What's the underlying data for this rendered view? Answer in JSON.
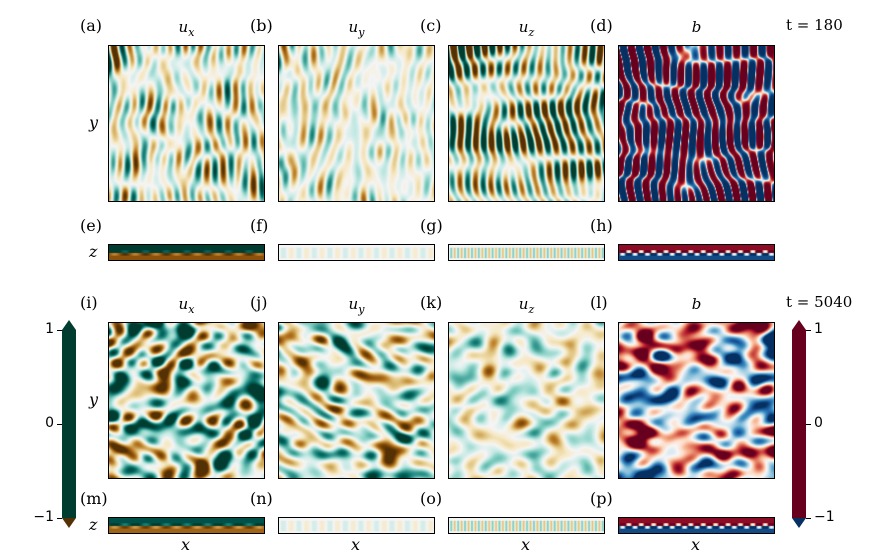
{
  "top": {
    "time_label": "t = 180",
    "panels": [
      {
        "tag": "(a)",
        "title": "u",
        "sub": "x",
        "field": "ux"
      },
      {
        "tag": "(b)",
        "title": "u",
        "sub": "y",
        "field": "uy"
      },
      {
        "tag": "(c)",
        "title": "u",
        "sub": "z",
        "field": "uz"
      },
      {
        "tag": "(d)",
        "title": "b",
        "sub": "",
        "field": "b"
      }
    ],
    "strips": [
      "(e)",
      "(f)",
      "(g)",
      "(h)"
    ],
    "ylabel": "y",
    "zlabel": "z"
  },
  "bottom": {
    "time_label": "t = 5040",
    "panels": [
      {
        "tag": "(i)",
        "title": "u",
        "sub": "x",
        "field": "ux"
      },
      {
        "tag": "(j)",
        "title": "u",
        "sub": "y",
        "field": "uy"
      },
      {
        "tag": "(k)",
        "title": "u",
        "sub": "z",
        "field": "uz"
      },
      {
        "tag": "(l)",
        "title": "b",
        "sub": "",
        "field": "b"
      }
    ],
    "strips": [
      "(m)",
      "(n)",
      "(o)",
      "(p)"
    ],
    "ylabel": "y",
    "zlabel": "z",
    "xlabel": "x"
  },
  "colorbars": {
    "velocity": {
      "colormap": "brown-white-teal",
      "ticks": [
        "1",
        "0",
        "−1"
      ],
      "range": [
        -1,
        1
      ],
      "colors": {
        "low": "#543005",
        "mid": "#f5f5f5",
        "high": "#003c30"
      }
    },
    "buoyancy": {
      "colormap": "blue-white-red",
      "ticks": [
        "1",
        "0",
        "−1"
      ],
      "range": [
        -1,
        1
      ],
      "colors": {
        "low": "#053061",
        "mid": "#f7f7f7",
        "high": "#67001f"
      }
    }
  }
}
